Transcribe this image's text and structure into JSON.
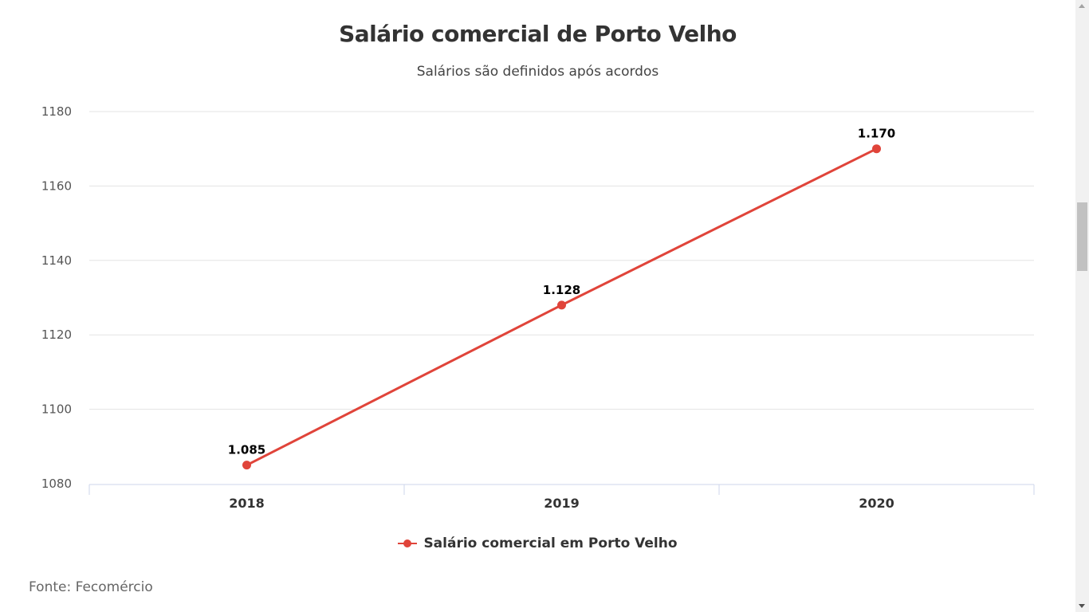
{
  "chart_data": {
    "type": "line",
    "title": "Salário comercial de Porto Velho",
    "subtitle": "Salários são definidos após acordos",
    "categories": [
      "2018",
      "2019",
      "2020"
    ],
    "series": [
      {
        "name": "Salário comercial em Porto Velho",
        "values": [
          1085,
          1128,
          1170
        ],
        "data_labels": [
          "1.085",
          "1.128",
          "1.170"
        ],
        "color": "#e0443a"
      }
    ],
    "ylim": [
      1080,
      1180
    ],
    "yticks": [
      1080,
      1100,
      1120,
      1140,
      1160,
      1180
    ],
    "grid": true,
    "legend_position": "bottom-center",
    "source": "Fonte: Fecomércio"
  },
  "scrollbar": {
    "up_icon": "triangle-up",
    "down_icon": "triangle-down"
  }
}
